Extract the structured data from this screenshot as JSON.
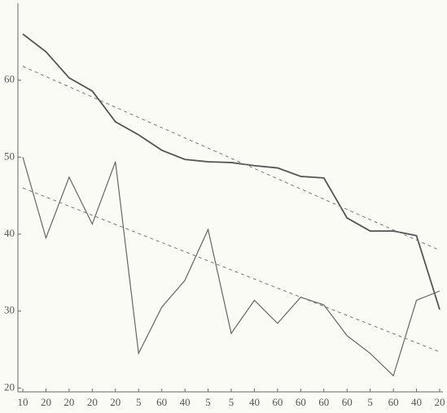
{
  "chart_data": {
    "type": "line",
    "categories": [
      "10",
      "20",
      "20",
      "20",
      "20",
      "5",
      "60",
      "40",
      "5",
      "5",
      "40",
      "60",
      "60",
      "60",
      "60",
      "5",
      "60",
      "40",
      "20"
    ],
    "series": [
      {
        "color": "#555555",
        "values": [
          66,
          63.7,
          60.3,
          58.6,
          54.6,
          52.9,
          50.9,
          49.7,
          49.4,
          49.3,
          48.9,
          48.6,
          47.5,
          47.3,
          42.1,
          40.4,
          40.4,
          39.8,
          30.2
        ]
      },
      {
        "color": "#666666",
        "values": [
          50,
          39.5,
          47.4,
          41.3,
          49.4,
          24.5,
          30.5,
          34,
          40.6,
          27.1,
          31.4,
          28.4,
          31.8,
          30.8,
          26.8,
          24.5,
          21.6,
          31.4,
          32.6
        ]
      }
    ],
    "trendlines": [
      {
        "color": "#777777",
        "values": [
          61.8,
          37.9
        ]
      },
      {
        "color": "#777777",
        "values": [
          46,
          24.7
        ]
      }
    ],
    "ylim": [
      19.5,
      70
    ],
    "yticks": [
      20,
      30,
      40,
      50,
      60
    ],
    "grid": false
  }
}
